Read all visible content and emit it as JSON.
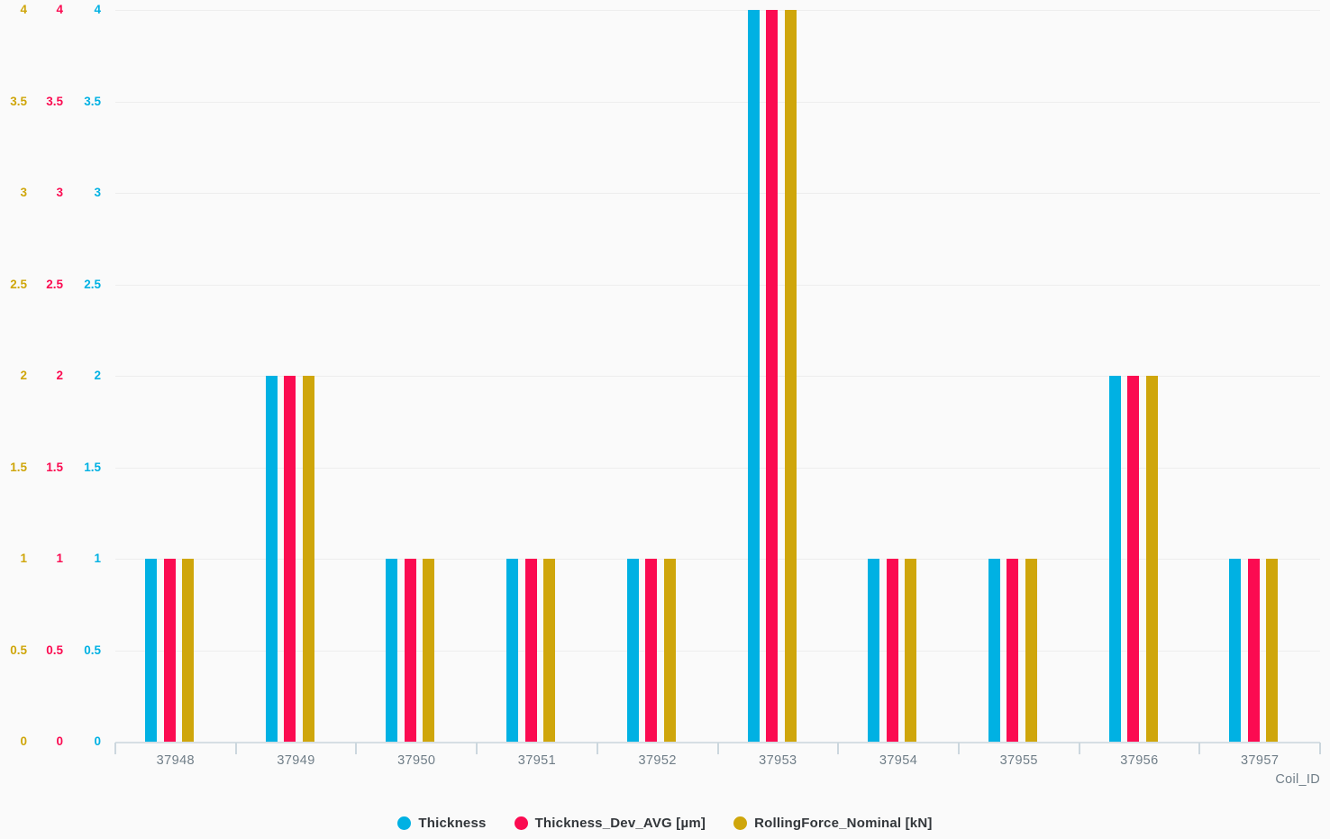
{
  "chart_data": {
    "type": "bar",
    "title": "",
    "categories": [
      "37948",
      "37949",
      "37950",
      "37951",
      "37952",
      "37953",
      "37954",
      "37955",
      "37956",
      "37957"
    ],
    "series": [
      {
        "name": "Thickness",
        "color": "#00b1e3",
        "values": [
          1,
          2,
          1,
          1,
          1,
          4,
          1,
          1,
          2,
          1
        ]
      },
      {
        "name": "Thickness_Dev_AVG [µm]",
        "color": "#fb0b51",
        "values": [
          1,
          2,
          1,
          1,
          1,
          4,
          1,
          1,
          2,
          1
        ]
      },
      {
        "name": "RollingForce_Nominal [kN]",
        "color": "#cfa60b",
        "values": [
          1,
          2,
          1,
          1,
          1,
          4,
          1,
          1,
          2,
          1
        ]
      }
    ],
    "xlabel": "Coil_ID",
    "ylabel": "",
    "ylim": [
      0,
      4
    ],
    "ytick_step": 0.5,
    "ytick_labels": [
      "0",
      "0.5",
      "1",
      "1.5",
      "2",
      "2.5",
      "3",
      "3.5",
      "4"
    ],
    "y_axis_columns": [
      {
        "series": "RollingForce_Nominal [kN]",
        "color": "#cfa60b"
      },
      {
        "series": "Thickness_Dev_AVG [µm]",
        "color": "#fb0b51"
      },
      {
        "series": "Thickness",
        "color": "#00b1e3"
      }
    ],
    "grid": true,
    "legend_position": "bottom",
    "legend": [
      "Thickness",
      "Thickness_Dev_AVG [µm]",
      "RollingForce_Nominal [kN]"
    ]
  },
  "colors": {
    "background": "#fafafa",
    "gridline": "#ededed",
    "axis_line": "#d6dee4",
    "axis_tick": "#ccd7de",
    "x_label": "#6f7d87",
    "legend_text": "#32363a"
  }
}
